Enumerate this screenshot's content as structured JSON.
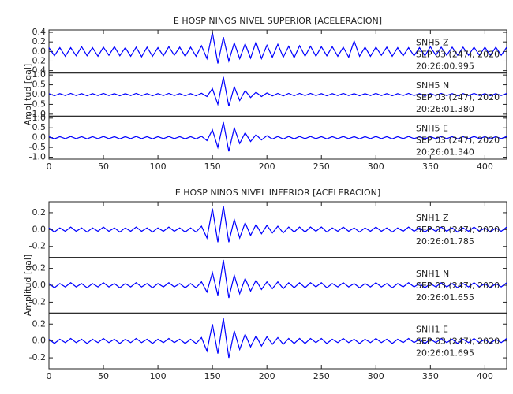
{
  "chart_data": [
    {
      "type": "line",
      "title": "E HOSP NINOS NIVEL SUPERIOR [ACELERACION]",
      "ylabel": "Amplitud [gal]",
      "xlim": [
        0,
        420
      ],
      "xticks": [
        0,
        50,
        100,
        150,
        200,
        250,
        300,
        350,
        400
      ],
      "x": [
        0,
        5,
        10,
        15,
        20,
        25,
        30,
        35,
        40,
        45,
        50,
        55,
        60,
        65,
        70,
        75,
        80,
        85,
        90,
        95,
        100,
        105,
        110,
        115,
        120,
        125,
        130,
        135,
        140,
        145,
        150,
        155,
        160,
        165,
        170,
        175,
        180,
        185,
        190,
        195,
        200,
        205,
        210,
        215,
        220,
        225,
        230,
        235,
        240,
        245,
        250,
        255,
        260,
        265,
        270,
        275,
        280,
        285,
        290,
        295,
        300,
        305,
        310,
        315,
        320,
        325,
        330,
        335,
        340,
        345,
        350,
        355,
        360,
        365,
        370,
        375,
        380,
        385,
        390,
        395,
        400,
        405,
        410,
        415,
        420
      ],
      "series": [
        {
          "name": "SNH5  Z",
          "date": "SEP 03 (247), 2020",
          "time": "20:26:00.995",
          "color": "#0000ff",
          "ylim": [
            -0.45,
            0.45
          ],
          "yticks": [
            -0.4,
            -0.2,
            {
              "value": 0,
              "label": "0.0"
            },
            0.2,
            0.4
          ],
          "values": [
            0.08,
            -0.09,
            0.08,
            -0.1,
            0.08,
            -0.09,
            0.1,
            -0.09,
            0.08,
            -0.1,
            0.09,
            -0.08,
            0.1,
            -0.09,
            0.08,
            -0.1,
            0.09,
            -0.11,
            0.09,
            -0.1,
            0.08,
            -0.09,
            0.1,
            -0.08,
            0.09,
            -0.1,
            0.09,
            -0.1,
            0.12,
            -0.15,
            0.4,
            -0.25,
            0.3,
            -0.2,
            0.18,
            -0.15,
            0.16,
            -0.14,
            0.2,
            -0.15,
            0.13,
            -0.12,
            0.15,
            -0.12,
            0.11,
            -0.13,
            0.12,
            -0.1,
            0.11,
            -0.1,
            0.1,
            -0.09,
            0.1,
            -0.1,
            0.09,
            -0.12,
            0.22,
            -0.1,
            0.09,
            -0.1,
            0.09,
            -0.08,
            0.09,
            -0.1,
            0.08,
            -0.09,
            0.08,
            -0.09,
            0.08,
            -0.09,
            0.1,
            -0.08,
            0.09,
            -0.08,
            0.09,
            -0.08,
            0.09,
            -0.08,
            0.09,
            -0.08,
            0.09,
            -0.08,
            0.09,
            -0.08,
            0.09
          ]
        },
        {
          "name": "SNH5  N",
          "date": "SEP 03 (247), 2020",
          "time": "20:26:01.380",
          "color": "#0000ff",
          "ylim": [
            -1.1,
            1.1
          ],
          "yticks": [
            {
              "value": -1,
              "label": "-1.0"
            },
            -0.5,
            {
              "value": 0,
              "label": "0.0"
            },
            0.5,
            {
              "value": 1,
              "label": "1.0"
            }
          ],
          "values": [
            0.05,
            -0.06,
            0.05,
            -0.05,
            0.06,
            -0.05,
            0.05,
            -0.06,
            0.05,
            -0.05,
            0.06,
            -0.05,
            0.05,
            -0.06,
            0.05,
            -0.05,
            0.06,
            -0.05,
            0.05,
            -0.06,
            0.05,
            -0.05,
            0.06,
            -0.05,
            0.05,
            -0.06,
            0.05,
            -0.06,
            0.07,
            -0.1,
            0.3,
            -0.5,
            0.9,
            -0.6,
            0.4,
            -0.3,
            0.2,
            -0.15,
            0.12,
            -0.1,
            0.08,
            -0.07,
            0.06,
            -0.07,
            0.06,
            -0.06,
            0.06,
            -0.05,
            0.06,
            -0.05,
            0.05,
            -0.06,
            0.05,
            -0.05,
            0.06,
            -0.05,
            0.05,
            -0.06,
            0.05,
            -0.05,
            0.06,
            -0.05,
            0.05,
            -0.06,
            0.05,
            -0.05,
            0.06,
            -0.05,
            0.05,
            -0.06,
            0.05,
            -0.05,
            0.06,
            -0.05,
            0.05,
            -0.06,
            0.05,
            -0.05,
            0.06,
            -0.05,
            0.05,
            -0.06,
            0.05,
            -0.05,
            0.06
          ]
        },
        {
          "name": "SNH5  E",
          "date": "SEP 03 (247), 2020",
          "time": "20:26:01.340",
          "color": "#0000ff",
          "ylim": [
            -1.1,
            1.1
          ],
          "yticks": [
            {
              "value": -1,
              "label": "-1.0"
            },
            -0.5,
            {
              "value": 0,
              "label": "0.0"
            },
            0.5,
            {
              "value": 1,
              "label": "1.0"
            }
          ],
          "values": [
            0.05,
            -0.06,
            0.05,
            -0.05,
            0.06,
            -0.05,
            0.05,
            -0.06,
            0.05,
            -0.05,
            0.06,
            -0.05,
            0.05,
            -0.06,
            0.05,
            -0.05,
            0.06,
            -0.05,
            0.05,
            -0.06,
            0.05,
            -0.05,
            0.06,
            -0.05,
            0.05,
            -0.06,
            0.05,
            -0.06,
            0.07,
            -0.15,
            0.4,
            -0.5,
            0.8,
            -0.7,
            0.5,
            -0.3,
            0.25,
            -0.2,
            0.15,
            -0.12,
            0.1,
            -0.07,
            0.06,
            -0.07,
            0.06,
            -0.06,
            0.06,
            -0.05,
            0.06,
            -0.05,
            0.05,
            -0.06,
            0.05,
            -0.05,
            0.06,
            -0.05,
            0.05,
            -0.06,
            0.05,
            -0.05,
            0.06,
            -0.05,
            0.05,
            -0.06,
            0.05,
            -0.05,
            0.06,
            -0.05,
            0.05,
            -0.06,
            0.05,
            -0.05,
            0.06,
            -0.05,
            0.05,
            -0.06,
            0.05,
            -0.05,
            0.06,
            -0.05,
            0.05,
            -0.06,
            0.05,
            -0.05,
            0.06
          ]
        }
      ]
    },
    {
      "type": "line",
      "title": "E HOSP NINOS NIVEL INFERIOR [ACELERACION]",
      "ylabel": "Amplitud [gal]",
      "xlim": [
        0,
        420
      ],
      "xticks": [
        0,
        50,
        100,
        150,
        200,
        250,
        300,
        350,
        400
      ],
      "x": [
        0,
        5,
        10,
        15,
        20,
        25,
        30,
        35,
        40,
        45,
        50,
        55,
        60,
        65,
        70,
        75,
        80,
        85,
        90,
        95,
        100,
        105,
        110,
        115,
        120,
        125,
        130,
        135,
        140,
        145,
        150,
        155,
        160,
        165,
        170,
        175,
        180,
        185,
        190,
        195,
        200,
        205,
        210,
        215,
        220,
        225,
        230,
        235,
        240,
        245,
        250,
        255,
        260,
        265,
        270,
        275,
        280,
        285,
        290,
        295,
        300,
        305,
        310,
        315,
        320,
        325,
        330,
        335,
        340,
        345,
        350,
        355,
        360,
        365,
        370,
        375,
        380,
        385,
        390,
        395,
        400,
        405,
        410,
        415,
        420
      ],
      "series": [
        {
          "name": "SNH1  Z",
          "date": "SEP 03 (247), 2020",
          "time": "20:26:01.785",
          "color": "#0000ff",
          "ylim": [
            -0.33,
            0.33
          ],
          "yticks": [
            -0.2,
            {
              "value": 0,
              "label": "0.0"
            },
            0.2
          ],
          "values": [
            0.02,
            -0.03,
            0.02,
            -0.02,
            0.03,
            -0.02,
            0.02,
            -0.03,
            0.02,
            -0.02,
            0.03,
            -0.02,
            0.02,
            -0.03,
            0.02,
            -0.02,
            0.03,
            -0.02,
            0.02,
            -0.03,
            0.02,
            -0.02,
            0.03,
            -0.02,
            0.02,
            -0.03,
            0.02,
            -0.03,
            0.04,
            -0.1,
            0.25,
            -0.15,
            0.28,
            -0.15,
            0.12,
            -0.1,
            0.08,
            -0.07,
            0.06,
            -0.05,
            0.05,
            -0.04,
            0.04,
            -0.04,
            0.03,
            -0.03,
            0.03,
            -0.03,
            0.03,
            -0.02,
            0.03,
            -0.03,
            0.02,
            -0.02,
            0.03,
            -0.02,
            0.02,
            -0.03,
            0.02,
            -0.02,
            0.03,
            -0.02,
            0.02,
            -0.03,
            0.02,
            -0.02,
            0.03,
            -0.02,
            0.02,
            -0.03,
            0.02,
            -0.02,
            0.03,
            -0.02,
            0.02,
            -0.03,
            0.02,
            -0.02,
            0.03,
            -0.02,
            0.02,
            -0.03,
            0.02,
            -0.02,
            0.03
          ]
        },
        {
          "name": "SNH1  N",
          "date": "SEP 03 (247), 2020",
          "time": "20:26:01.655",
          "color": "#0000ff",
          "ylim": [
            -0.33,
            0.33
          ],
          "yticks": [
            -0.2,
            {
              "value": 0,
              "label": "0.0"
            },
            0.2
          ],
          "values": [
            0.02,
            -0.03,
            0.02,
            -0.02,
            0.03,
            -0.02,
            0.02,
            -0.03,
            0.02,
            -0.02,
            0.03,
            -0.02,
            0.02,
            -0.03,
            0.02,
            -0.02,
            0.03,
            -0.02,
            0.02,
            -0.03,
            0.02,
            -0.02,
            0.03,
            -0.02,
            0.02,
            -0.03,
            0.02,
            -0.03,
            0.04,
            -0.08,
            0.15,
            -0.12,
            0.3,
            -0.15,
            0.12,
            -0.1,
            0.08,
            -0.07,
            0.06,
            -0.05,
            0.04,
            -0.04,
            0.04,
            -0.04,
            0.03,
            -0.03,
            0.03,
            -0.03,
            0.03,
            -0.02,
            0.03,
            -0.03,
            0.02,
            -0.02,
            0.03,
            -0.02,
            0.02,
            -0.03,
            0.02,
            -0.02,
            0.03,
            -0.02,
            0.02,
            -0.03,
            0.02,
            -0.02,
            0.03,
            -0.02,
            0.02,
            -0.03,
            0.02,
            -0.02,
            0.03,
            -0.02,
            0.02,
            -0.03,
            0.02,
            -0.02,
            0.03,
            -0.02,
            0.02,
            -0.03,
            0.02,
            -0.02,
            0.03
          ]
        },
        {
          "name": "SNH1  E",
          "date": "SEP 03 (247), 2020",
          "time": "20:26:01.695",
          "color": "#0000ff",
          "ylim": [
            -0.33,
            0.33
          ],
          "yticks": [
            -0.2,
            {
              "value": 0,
              "label": "0.0"
            },
            0.2
          ],
          "values": [
            0.02,
            -0.03,
            0.02,
            -0.02,
            0.03,
            -0.02,
            0.02,
            -0.03,
            0.02,
            -0.02,
            0.03,
            -0.02,
            0.02,
            -0.03,
            0.02,
            -0.02,
            0.03,
            -0.02,
            0.02,
            -0.03,
            0.02,
            -0.02,
            0.03,
            -0.02,
            0.02,
            -0.03,
            0.02,
            -0.03,
            0.04,
            -0.12,
            0.2,
            -0.15,
            0.27,
            -0.2,
            0.12,
            -0.1,
            0.08,
            -0.07,
            0.06,
            -0.06,
            0.05,
            -0.04,
            0.04,
            -0.04,
            0.03,
            -0.03,
            0.03,
            -0.03,
            0.03,
            -0.02,
            0.03,
            -0.03,
            0.02,
            -0.02,
            0.03,
            -0.02,
            0.02,
            -0.03,
            0.02,
            -0.02,
            0.03,
            -0.02,
            0.02,
            -0.03,
            0.02,
            -0.02,
            0.03,
            -0.02,
            0.02,
            -0.03,
            0.02,
            -0.02,
            0.03,
            -0.02,
            0.02,
            -0.03,
            0.02,
            -0.02,
            0.03,
            -0.02,
            0.02,
            -0.03,
            0.02,
            -0.02,
            0.03
          ]
        }
      ]
    }
  ]
}
